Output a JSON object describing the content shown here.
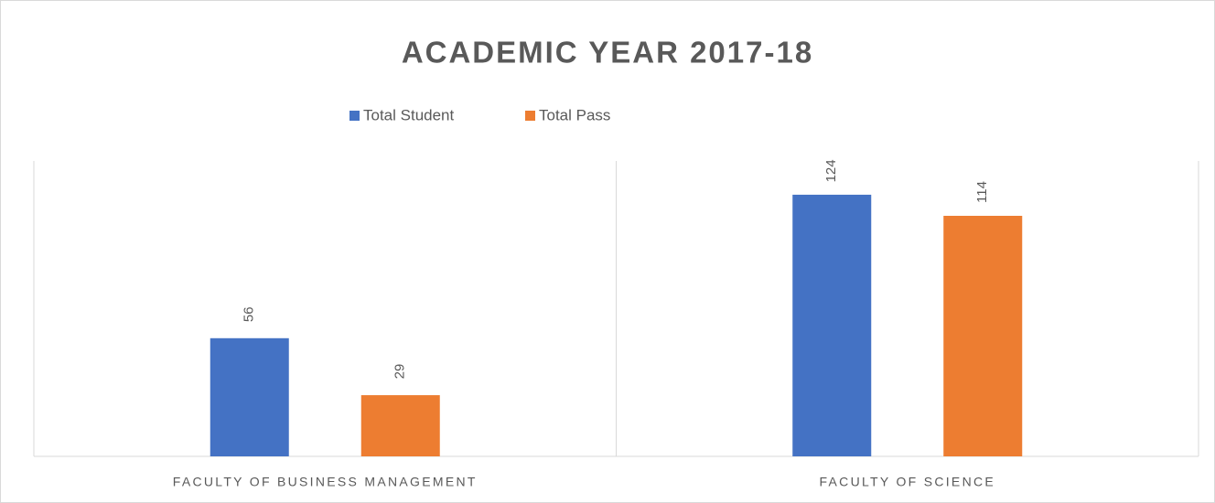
{
  "chart_data": {
    "type": "bar",
    "title": "ACADEMIC YEAR 2017-18",
    "categories": [
      "FACULTY OF BUSINESS MANAGEMENT",
      "FACULTY OF SCIENCE"
    ],
    "series": [
      {
        "name": "Total Student",
        "color": "#4472c4",
        "values": [
          56,
          124
        ]
      },
      {
        "name": "Total Pass",
        "color": "#ed7d31",
        "values": [
          29,
          114
        ]
      }
    ],
    "ylim": [
      0,
      140
    ],
    "legend": "top"
  }
}
